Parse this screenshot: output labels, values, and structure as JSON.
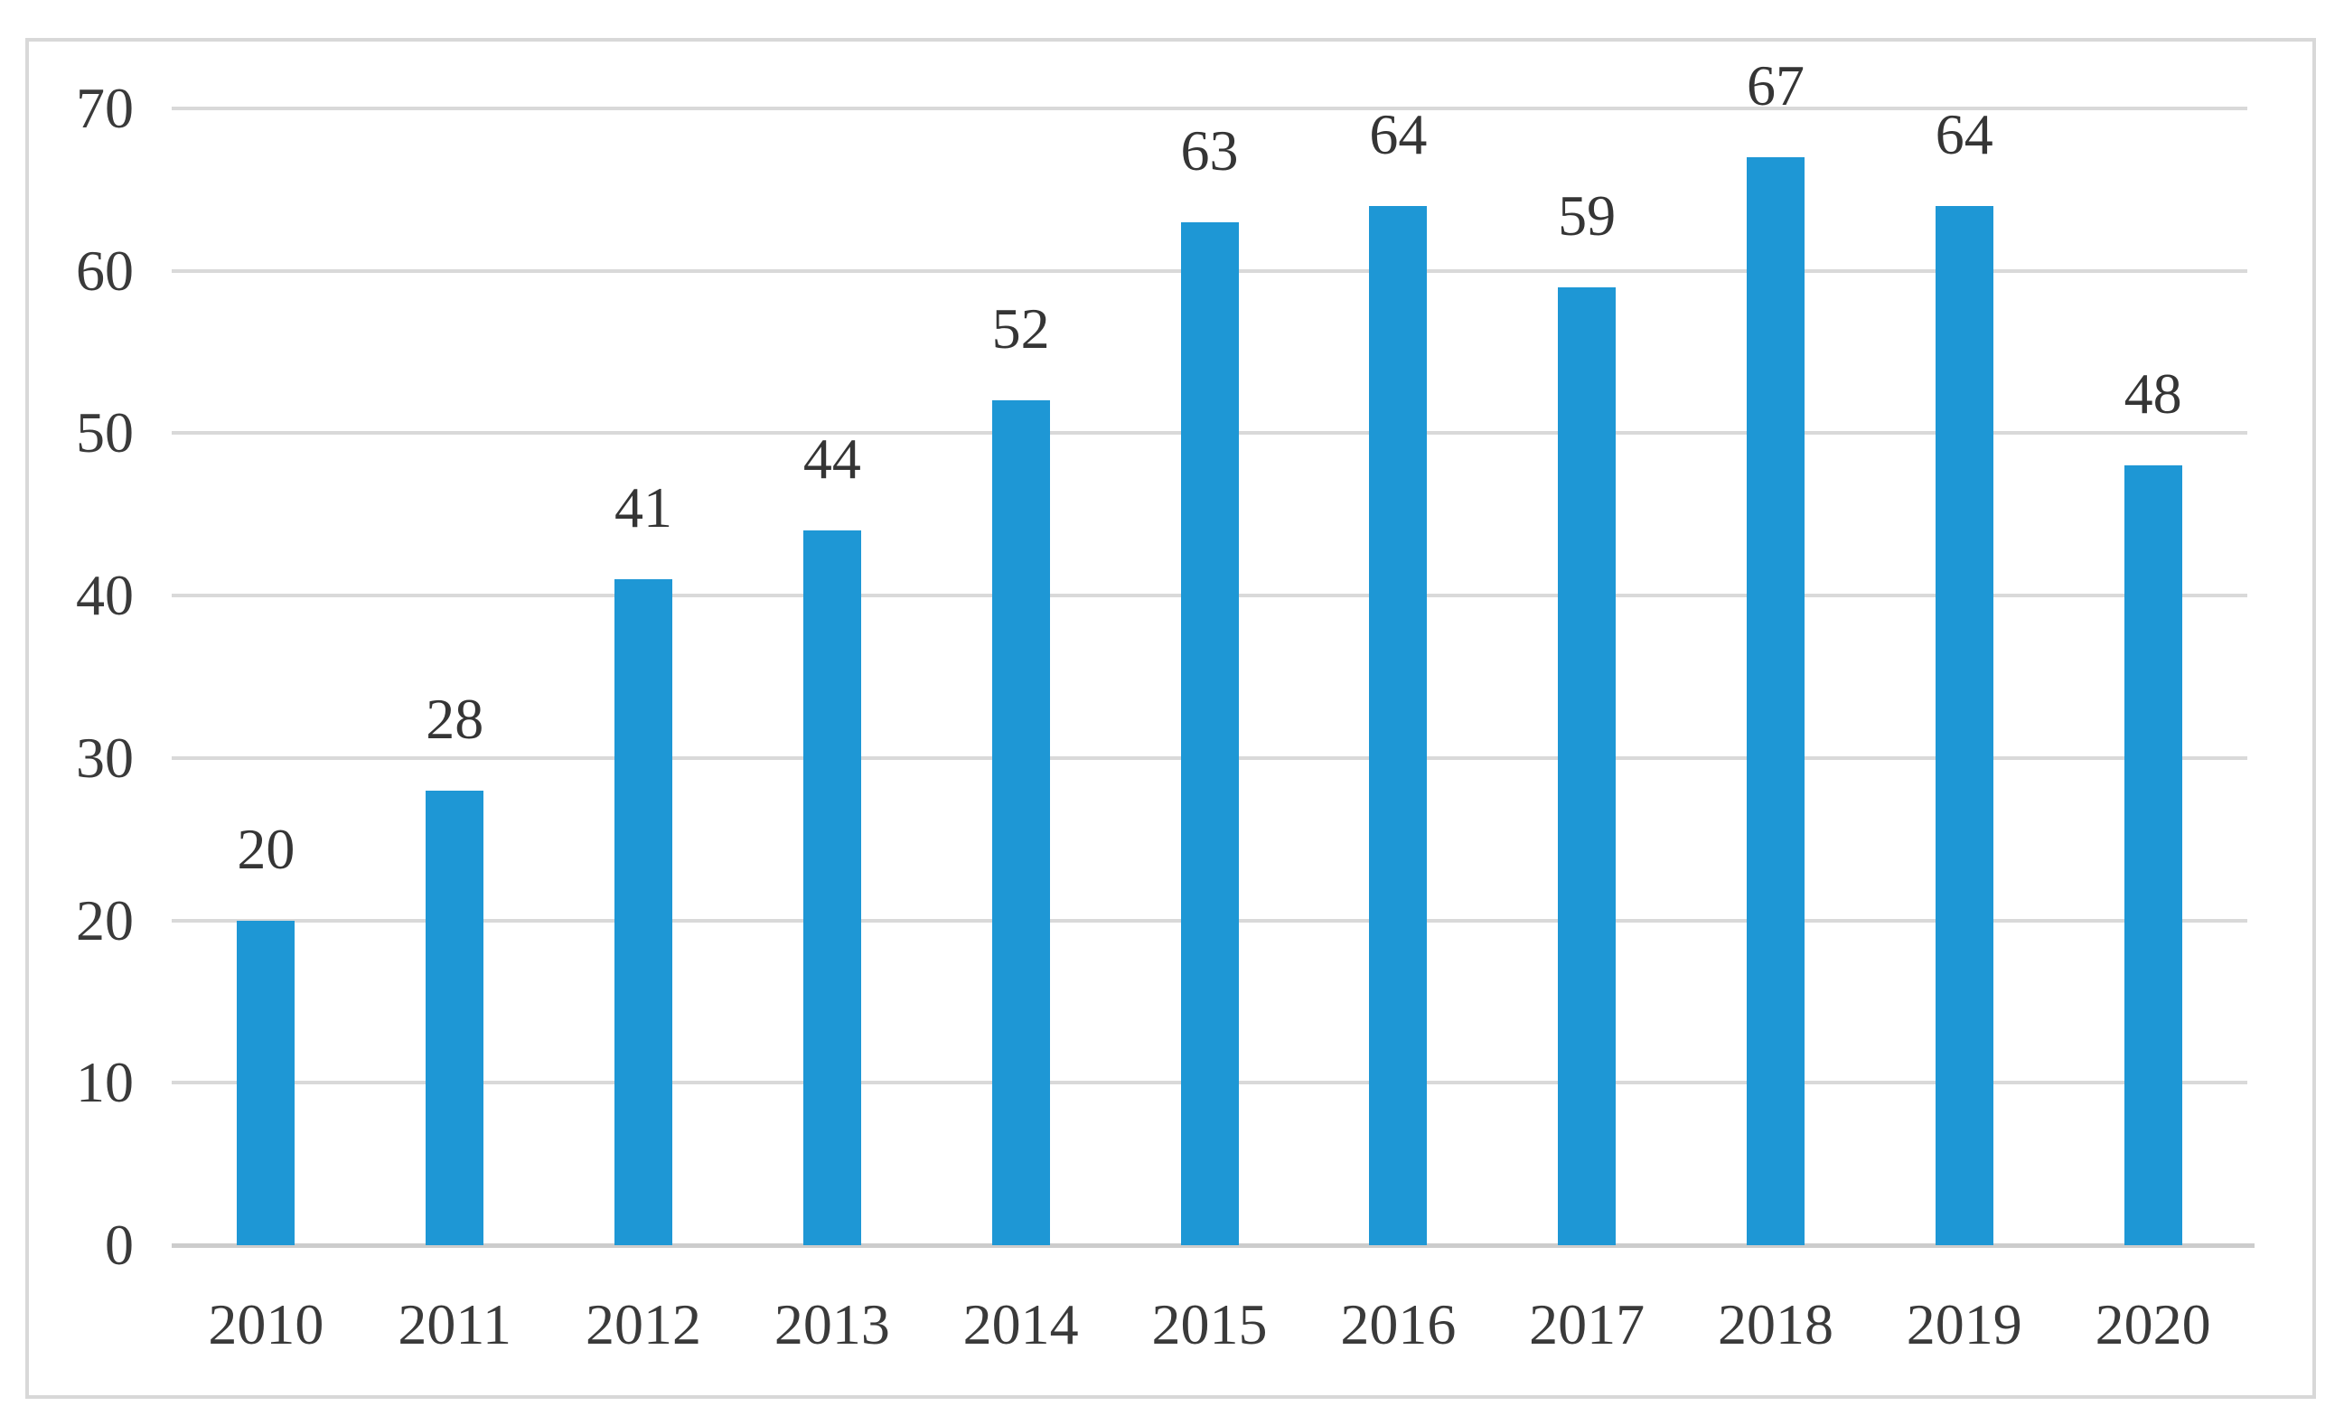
{
  "colors": {
    "bar": "#1e97d5",
    "gridline": "#d9d9d9",
    "axis_line": "#cccccc",
    "text": "#3a3a3a",
    "frame_border": "#d8d8d8",
    "background": "#ffffff"
  },
  "chart_data": {
    "type": "bar",
    "categories": [
      "2010",
      "2011",
      "2012",
      "2013",
      "2014",
      "2015",
      "2016",
      "2017",
      "2018",
      "2019",
      "2020"
    ],
    "values": [
      20,
      28,
      41,
      44,
      52,
      63,
      64,
      59,
      67,
      64,
      48
    ],
    "series_name": "",
    "title": "",
    "xlabel": "",
    "ylabel": "",
    "ylim": [
      0,
      70
    ],
    "y_ticks": [
      0,
      10,
      20,
      30,
      40,
      50,
      60,
      70
    ],
    "grid": true,
    "legend": false,
    "data_labels": true
  }
}
